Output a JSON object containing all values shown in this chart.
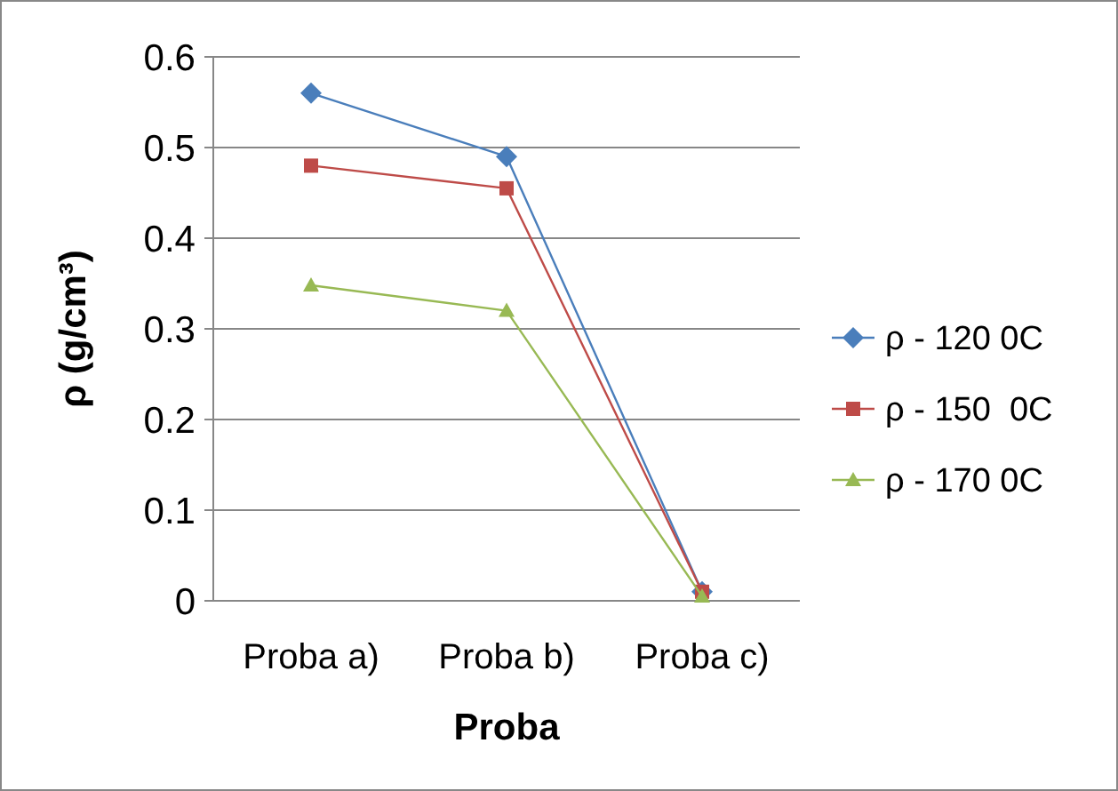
{
  "chart_data": {
    "type": "line",
    "xlabel": "Proba",
    "ylabel": "ρ  (g/cm³)",
    "categories": [
      "Proba a)",
      "Proba b)",
      "Proba c)"
    ],
    "series": [
      {
        "name": "ρ - 120 0C",
        "color": "#4a7ebb",
        "marker": "diamond",
        "values": [
          0.56,
          0.49,
          0.01
        ]
      },
      {
        "name": "ρ - 150  0C",
        "color": "#be4b48",
        "marker": "square",
        "values": [
          0.48,
          0.455,
          0.01
        ]
      },
      {
        "name": "ρ - 170 0C",
        "color": "#98b954",
        "marker": "triangle",
        "values": [
          0.348,
          0.32,
          0.005
        ]
      }
    ],
    "ylim": [
      0,
      0.6
    ],
    "yticks": [
      0,
      0.1,
      0.2,
      0.3,
      0.4,
      0.5,
      0.6
    ],
    "grid": "y",
    "legend": "right"
  }
}
